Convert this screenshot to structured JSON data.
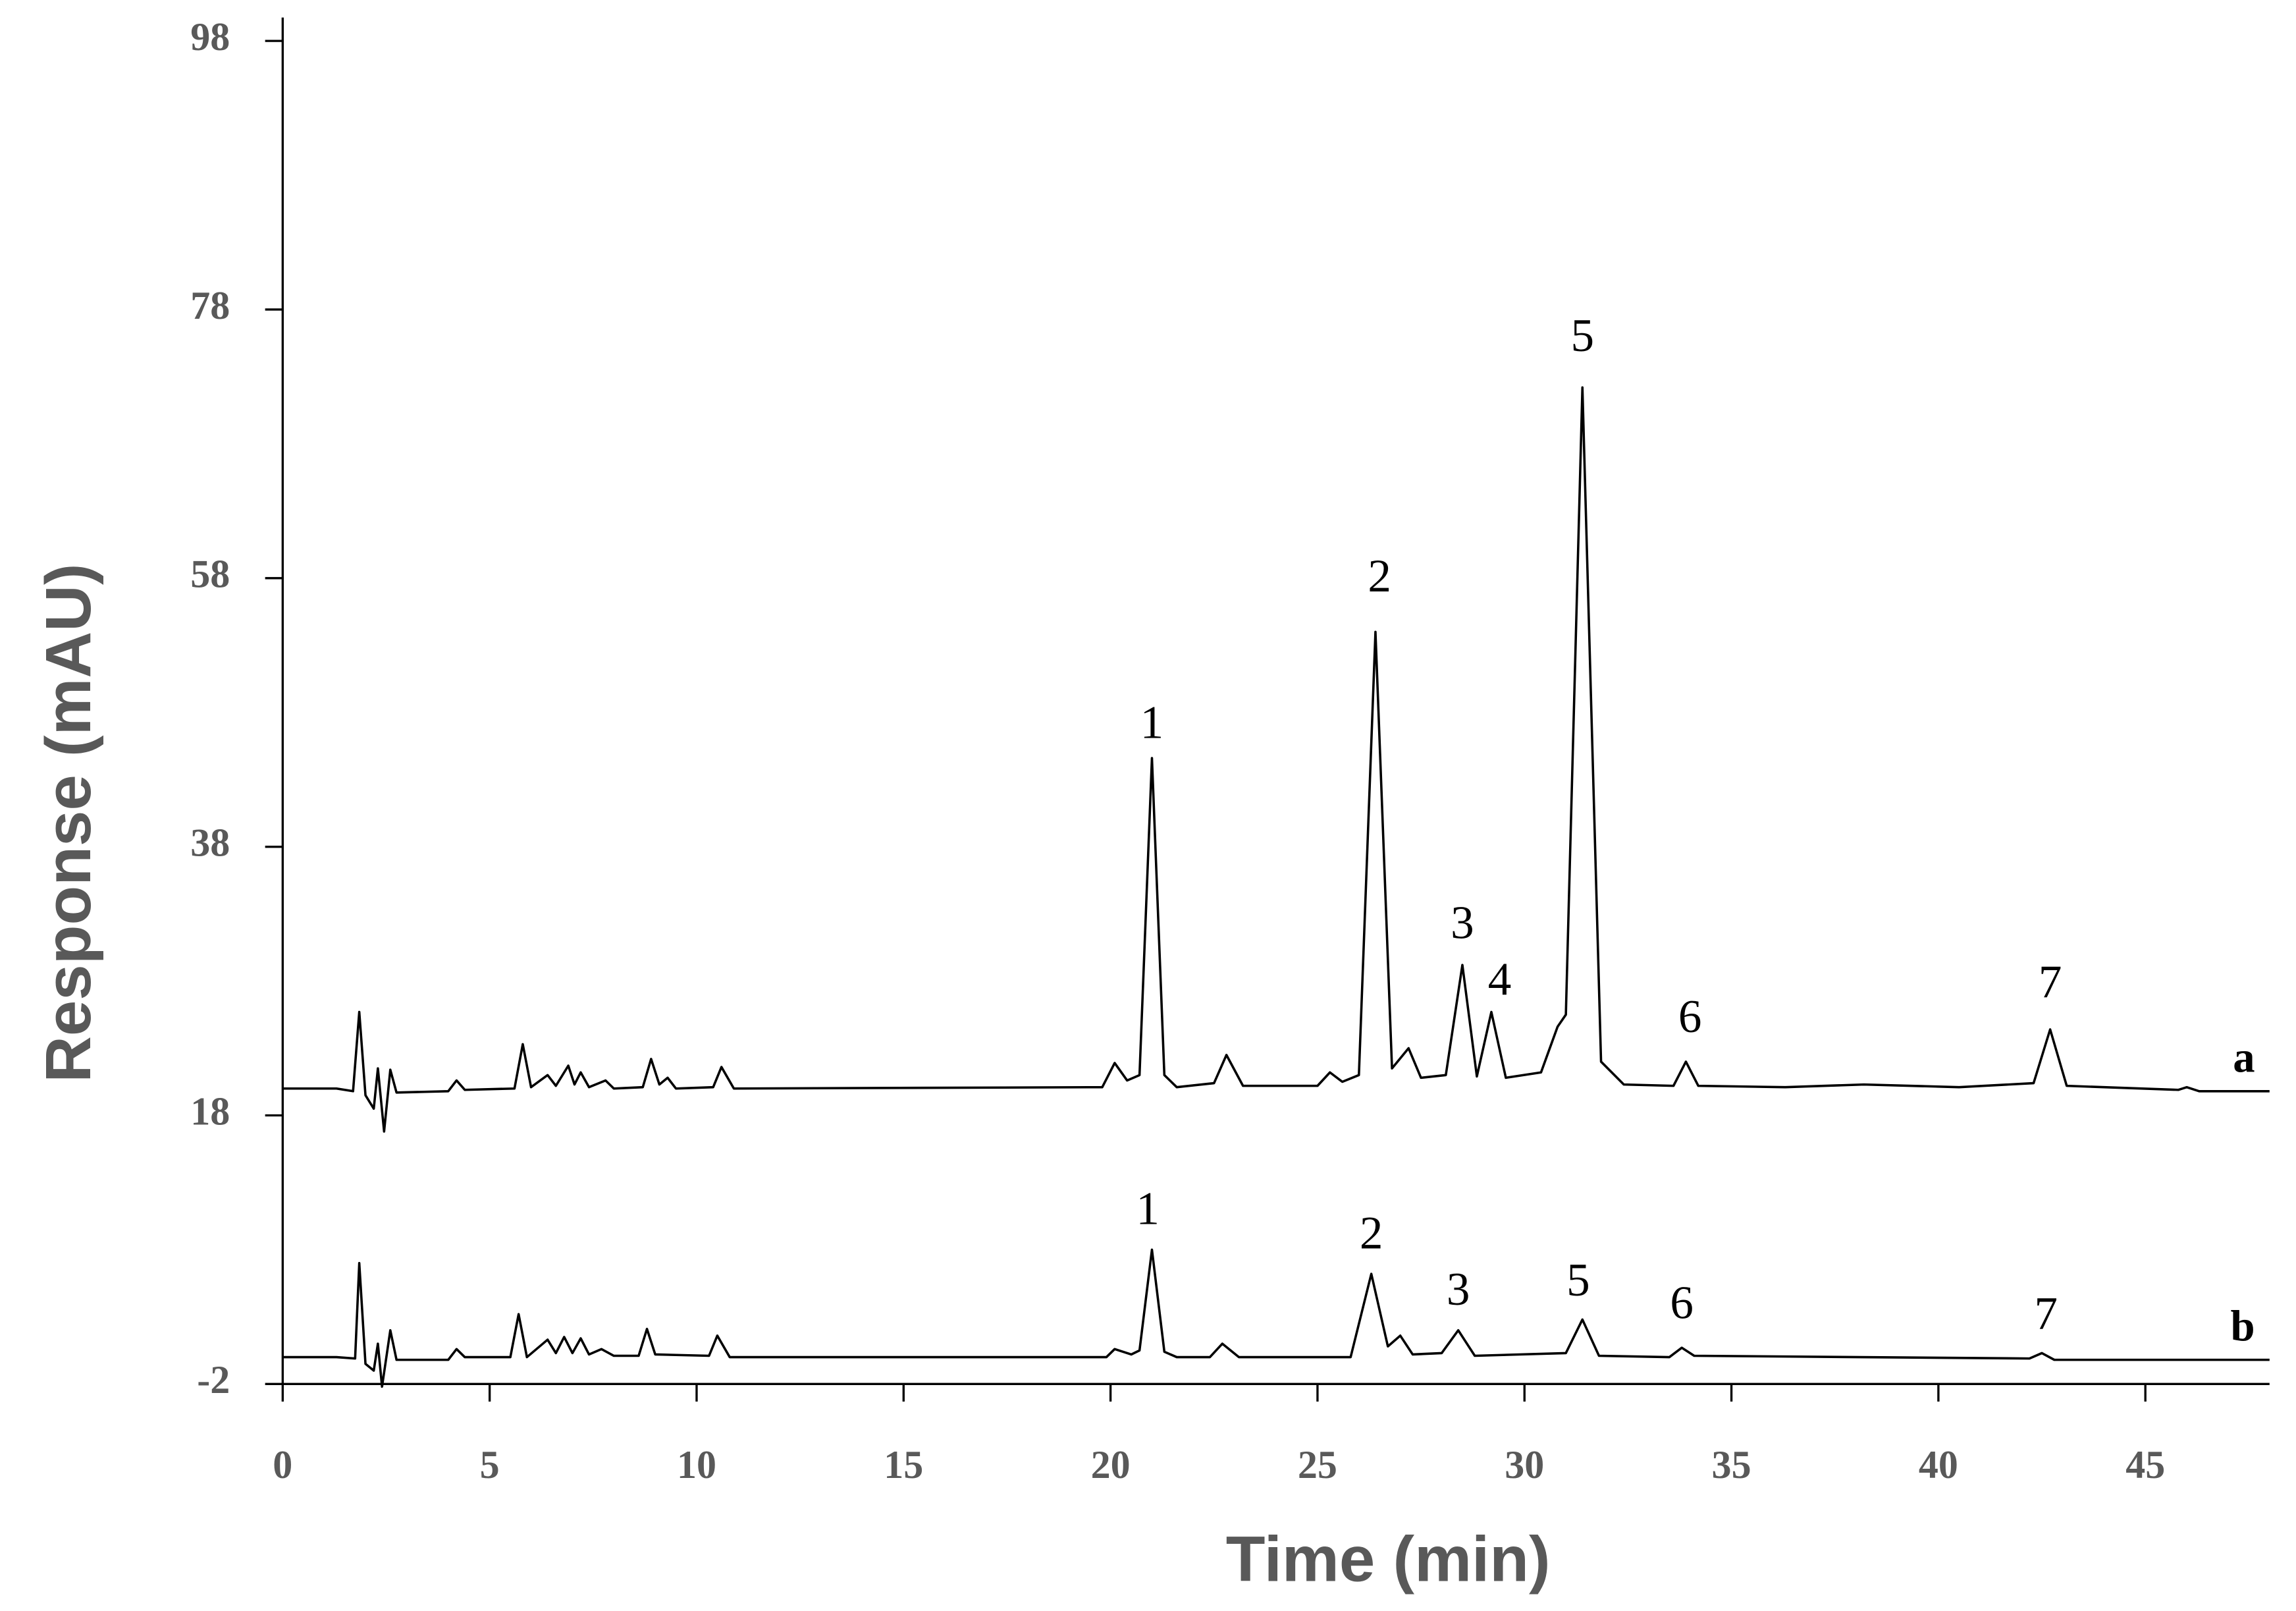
{
  "chart_data": {
    "type": "line",
    "x_label": "Time (min)",
    "y_label": "Response (mAU)",
    "xlim": [
      0,
      48
    ],
    "xticks": [
      0,
      5,
      10,
      15,
      20,
      25,
      30,
      35,
      40,
      45
    ],
    "ylim": [
      -2,
      100
    ],
    "yticks": [
      -2,
      18,
      38,
      58,
      78,
      98
    ],
    "grid": false,
    "series": [
      {
        "name": "a",
        "color": "#000000",
        "x": [
          0,
          1.3,
          1.7,
          1.85,
          2.0,
          2.2,
          2.3,
          2.45,
          2.6,
          2.75,
          4.0,
          4.2,
          4.4,
          5.6,
          5.8,
          6.0,
          6.4,
          6.6,
          6.9,
          7.05,
          7.2,
          7.4,
          7.8,
          8.0,
          8.7,
          8.9,
          9.1,
          9.3,
          9.5,
          10.4,
          10.6,
          10.9,
          19.8,
          20.1,
          20.4,
          20.7,
          21.0,
          21.3,
          21.6,
          22.5,
          22.8,
          23.2,
          25.0,
          25.3,
          25.6,
          26.0,
          26.4,
          26.8,
          27.2,
          27.5,
          28.1,
          28.5,
          28.85,
          29.2,
          29.55,
          30.4,
          30.8,
          31.0,
          31.4,
          31.85,
          32.4,
          33.6,
          33.9,
          34.2,
          36.3,
          38.2,
          40.5,
          42.3,
          42.7,
          43.1,
          45.8,
          46.0,
          46.3,
          48
        ],
        "values": [
          20,
          20,
          19.8,
          25.7,
          19.5,
          18.5,
          21.5,
          16.8,
          21.4,
          19.7,
          19.8,
          20.6,
          19.9,
          20,
          23.3,
          20.1,
          21,
          20.2,
          21.7,
          20.3,
          21.2,
          20.1,
          20.6,
          20,
          20.1,
          22.2,
          20.3,
          20.8,
          20,
          20.1,
          21.6,
          20,
          20.1,
          21.9,
          20.6,
          21,
          44.6,
          21,
          20.1,
          20.4,
          22.5,
          20.2,
          20.2,
          21.2,
          20.5,
          21,
          54,
          21.5,
          23,
          20.8,
          21,
          29.2,
          20.9,
          25.7,
          20.8,
          21.2,
          24.6,
          25.5,
          72.2,
          22,
          20.3,
          20.2,
          22,
          20.2,
          20.1,
          20.3,
          20.1,
          20.4,
          24.4,
          20.2,
          19.9,
          20.1,
          19.8,
          19.8
        ]
      },
      {
        "name": "b",
        "color": "#000000",
        "x": [
          0,
          1.3,
          1.75,
          1.85,
          2.0,
          2.2,
          2.3,
          2.4,
          2.6,
          2.75,
          4.0,
          4.2,
          4.4,
          5.5,
          5.7,
          5.9,
          6.4,
          6.6,
          6.8,
          7.0,
          7.2,
          7.4,
          7.7,
          8.0,
          8.6,
          8.8,
          9.0,
          10.3,
          10.5,
          10.8,
          19.9,
          20.1,
          20.5,
          20.7,
          21.0,
          21.3,
          21.6,
          22.4,
          22.7,
          23.1,
          25.8,
          26.3,
          26.7,
          27.0,
          27.3,
          28.0,
          28.4,
          28.8,
          31.0,
          31.4,
          31.8,
          33.5,
          33.8,
          34.1,
          42.2,
          42.5,
          42.8,
          48
        ],
        "values": [
          0,
          0,
          -0.1,
          7,
          -0.5,
          -1,
          1,
          -2.2,
          2,
          -0.2,
          -0.2,
          0.6,
          0,
          0,
          3.2,
          0,
          1.3,
          0.3,
          1.5,
          0.3,
          1.4,
          0.2,
          0.6,
          0.1,
          0.1,
          2.1,
          0.2,
          0.1,
          1.6,
          0,
          0,
          0.6,
          0.2,
          0.5,
          8,
          0.4,
          0,
          0,
          1,
          0,
          0,
          6.2,
          0.8,
          1.6,
          0.2,
          0.3,
          2,
          0.1,
          0.3,
          2.8,
          0.1,
          0,
          0.7,
          0.1,
          -0.1,
          0.3,
          -0.2,
          -0.2
        ]
      }
    ],
    "annotations": [
      {
        "text": "1",
        "x": 21.0,
        "y": 46.9
      },
      {
        "text": "2",
        "x": 26.5,
        "y": 57.8
      },
      {
        "text": "3",
        "x": 28.5,
        "y": 32
      },
      {
        "text": "4",
        "x": 29.4,
        "y": 27.8
      },
      {
        "text": "5",
        "x": 31.4,
        "y": 75.7
      },
      {
        "text": "6",
        "x": 34.0,
        "y": 25
      },
      {
        "text": "7",
        "x": 42.7,
        "y": 27.6
      },
      {
        "text": "1",
        "x": 20.9,
        "y": 10.7
      },
      {
        "text": "2",
        "x": 26.3,
        "y": 8.9
      },
      {
        "text": "3",
        "x": 28.4,
        "y": 4.7
      },
      {
        "text": "5",
        "x": 31.3,
        "y": 5.4
      },
      {
        "text": "6",
        "x": 33.8,
        "y": 3.7
      },
      {
        "text": "7",
        "x": 42.6,
        "y": 2.9
      }
    ]
  }
}
